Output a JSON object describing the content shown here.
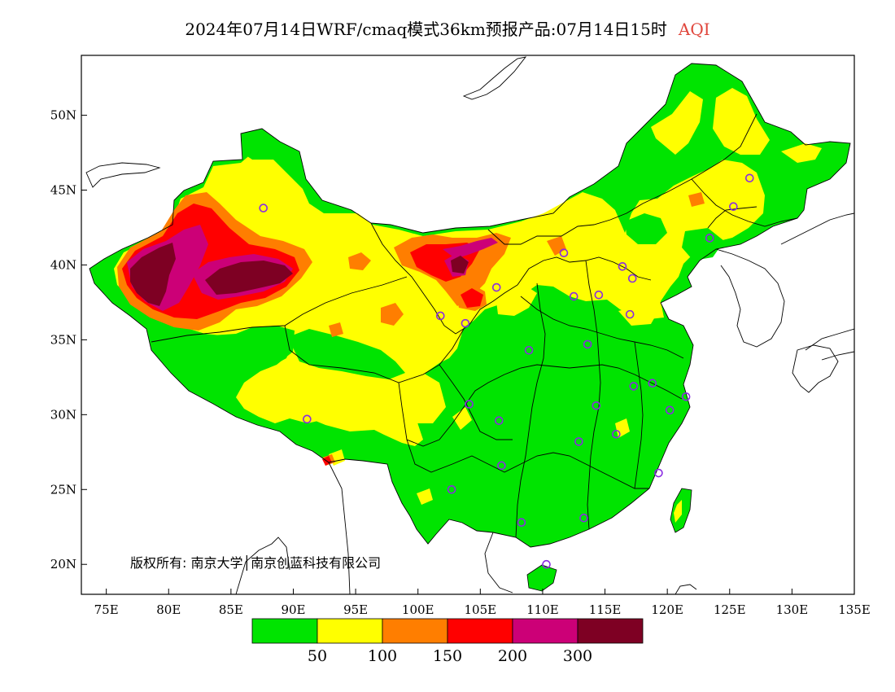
{
  "title": {
    "main": "2024年07月14日WRF/cmaq模式36km预报产品:07月14日15时",
    "variable": "AQI"
  },
  "axes": {
    "lon_ticks": [
      "75E",
      "80E",
      "85E",
      "90E",
      "95E",
      "100E",
      "105E",
      "110E",
      "115E",
      "120E",
      "125E",
      "130E",
      "135E"
    ],
    "lat_ticks": [
      "50N",
      "45N",
      "40N",
      "35N",
      "30N",
      "25N",
      "20N"
    ],
    "lon_range": [
      73,
      135
    ],
    "lat_range": [
      18,
      54
    ]
  },
  "legend": {
    "colors": [
      "#00e400",
      "#ffff00",
      "#ff7e00",
      "#ff0000",
      "#cc0077",
      "#7e0023"
    ],
    "labels": [
      "50",
      "100",
      "150",
      "200",
      "300"
    ]
  },
  "copyright": "版权所有: 南京大学│南京创蓝科技有限公司",
  "colors": {
    "good": "#00e400",
    "moderate": "#ffff00",
    "sensitive": "#ff7e00",
    "unhealthy": "#ff0000",
    "very_unhealthy": "#cc0077",
    "hazardous": "#7e0023",
    "station_marker": "#8a2be2"
  },
  "stations": [
    [
      87.6,
      43.8
    ],
    [
      103.8,
      36.1
    ],
    [
      101.8,
      36.6
    ],
    [
      106.3,
      38.5
    ],
    [
      111.7,
      40.8
    ],
    [
      116.4,
      39.9
    ],
    [
      117.2,
      39.1
    ],
    [
      114.5,
      38.0
    ],
    [
      112.5,
      37.9
    ],
    [
      113.6,
      34.7
    ],
    [
      117.0,
      36.7
    ],
    [
      108.9,
      34.3
    ],
    [
      104.1,
      30.7
    ],
    [
      106.5,
      29.6
    ],
    [
      106.7,
      26.6
    ],
    [
      102.7,
      25.0
    ],
    [
      108.3,
      22.8
    ],
    [
      113.3,
      23.1
    ],
    [
      110.3,
      20.0
    ],
    [
      114.3,
      30.6
    ],
    [
      112.9,
      28.2
    ],
    [
      115.9,
      28.7
    ],
    [
      117.3,
      31.9
    ],
    [
      118.8,
      32.1
    ],
    [
      120.2,
      30.3
    ],
    [
      121.5,
      31.2
    ],
    [
      119.3,
      26.1
    ],
    [
      123.4,
      41.8
    ],
    [
      125.3,
      43.9
    ],
    [
      126.6,
      45.8
    ],
    [
      91.1,
      29.7
    ]
  ]
}
